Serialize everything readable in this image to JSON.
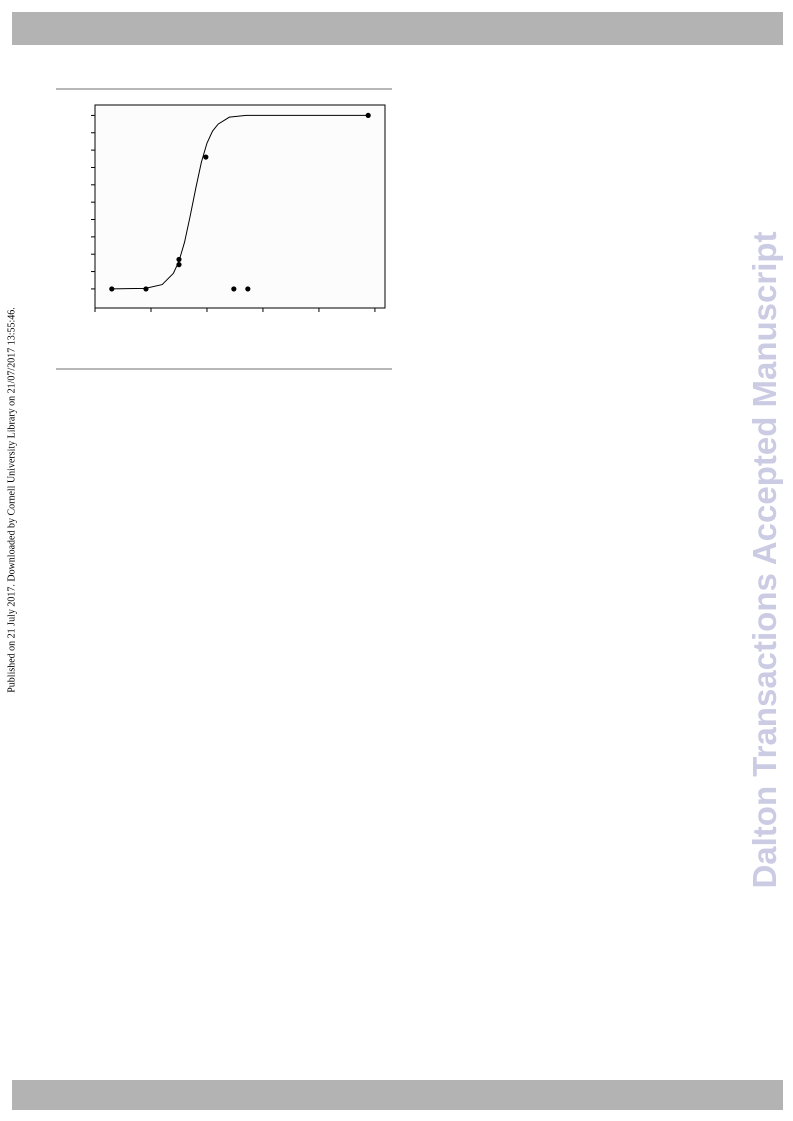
{
  "side_note": "Published on 21 July 2017. Downloaded by Cornell University Library on 21/07/2017 13:55:46.",
  "watermark": "Dalton Transactions Accepted Manuscript",
  "chart_data": {
    "type": "scatter",
    "xlim": [
      0,
      5.18
    ],
    "xticks": [
      0,
      1,
      2,
      3,
      4,
      5
    ],
    "ylim": [
      -1.1,
      10.6
    ],
    "yticks": [
      0,
      1,
      2,
      3,
      4,
      5,
      6,
      7,
      8,
      9,
      10
    ],
    "series": [
      {
        "type": "scatter",
        "color": "#000000",
        "x": [
          0.3,
          0.91,
          1.5,
          1.5,
          1.98,
          2.48,
          2.73,
          4.88
        ],
        "values": [
          0,
          0,
          1.7,
          1.4,
          7.6,
          0,
          0,
          10
        ]
      },
      {
        "type": "line",
        "color": "#000000",
        "x": [
          0.3,
          0.9,
          1.2,
          1.4,
          1.5,
          1.6,
          1.7,
          1.8,
          1.9,
          2.0,
          2.1,
          2.2,
          2.4,
          2.7,
          3.0,
          4.88
        ],
        "values": [
          0,
          0.03,
          0.25,
          0.9,
          1.6,
          2.7,
          4.2,
          5.8,
          7.3,
          8.4,
          9.1,
          9.5,
          9.9,
          10,
          10,
          10
        ]
      }
    ]
  }
}
